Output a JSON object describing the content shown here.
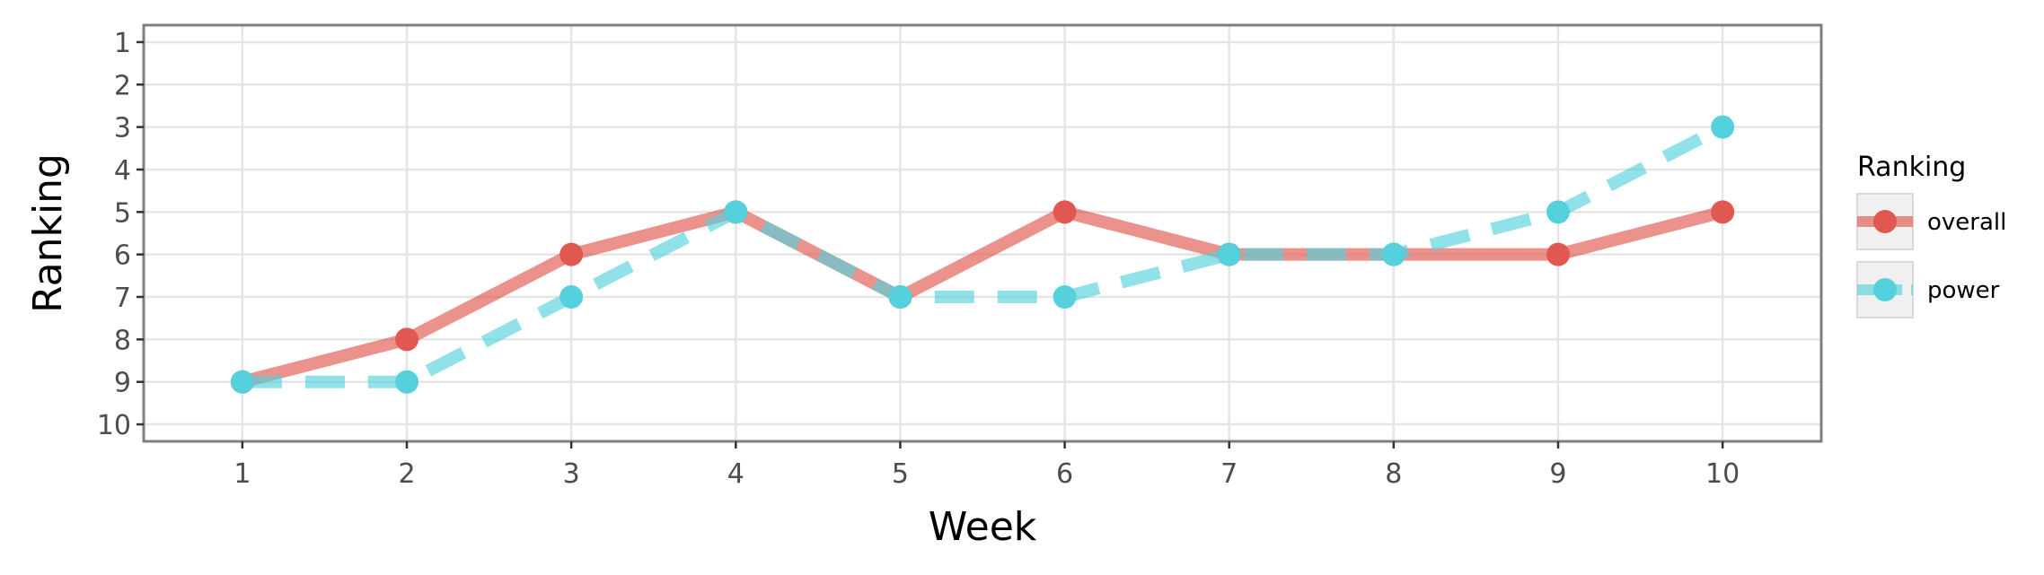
{
  "chart_data": {
    "type": "line",
    "title": "",
    "xlabel": "Week",
    "ylabel": "Ranking",
    "x": [
      1,
      2,
      3,
      4,
      5,
      6,
      7,
      8,
      9,
      10
    ],
    "xlim": [
      0.4,
      10.6
    ],
    "ylim": [
      10.4,
      0.6
    ],
    "y_reversed": true,
    "x_ticks": [
      "1",
      "2",
      "3",
      "4",
      "5",
      "6",
      "7",
      "8",
      "9",
      "10"
    ],
    "y_ticks": [
      "1",
      "2",
      "3",
      "4",
      "5",
      "6",
      "7",
      "8",
      "9",
      "10"
    ],
    "grid": true,
    "legend": {
      "title": "Ranking",
      "placement": "right"
    },
    "series": [
      {
        "name": "overall",
        "values": [
          9,
          8,
          6,
          5,
          7,
          5,
          6,
          6,
          6,
          5
        ],
        "color": "#e0584f",
        "line_style": "solid"
      },
      {
        "name": "power",
        "values": [
          9,
          9,
          7,
          5,
          7,
          7,
          6,
          6,
          5,
          3
        ],
        "color": "#54d1dc",
        "line_style": "dashed"
      }
    ]
  }
}
